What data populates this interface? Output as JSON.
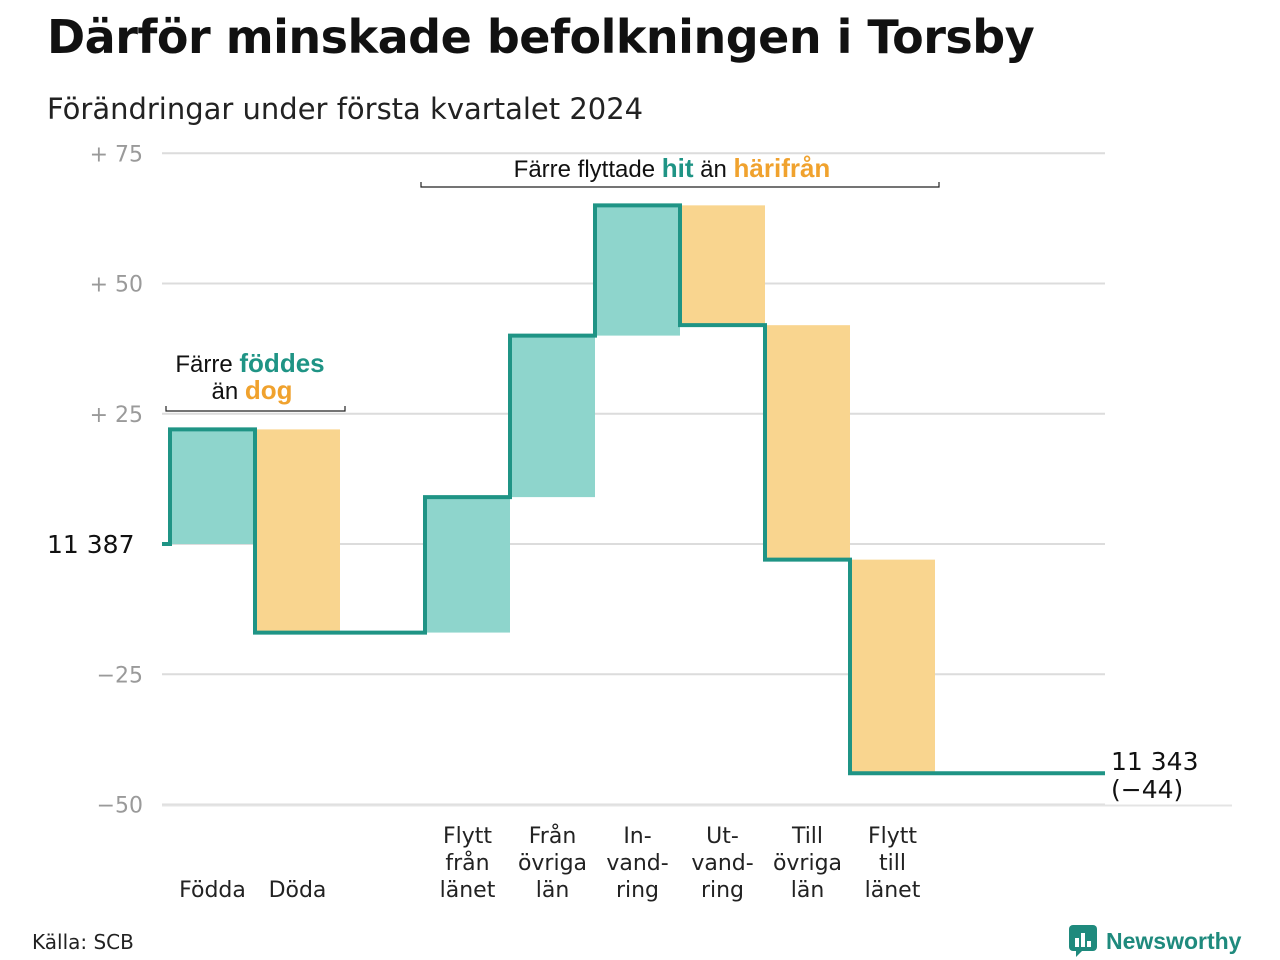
{
  "title": "Därför minskade befolkningen i Torsby",
  "subtitle": "Förändringar under första kvartalet 2024",
  "source": "Källa: SCB",
  "logo": {
    "text": "Newsworthy",
    "icon": "newsworthy-logo-icon"
  },
  "colors": {
    "teal_line": "#1f9485",
    "teal_fill": "#8ed5cc",
    "orange_fill": "#f9d58f",
    "orange_text": "#f0a22e",
    "grid": "#dcdcdc"
  },
  "chart_data": {
    "type": "waterfall",
    "start_label": "11  387",
    "end_label": "11 343",
    "end_change_label": "(−44)",
    "start_value": 11387,
    "end_value": 11343,
    "y_ticks": [
      {
        "value": 75,
        "label": "+  75"
      },
      {
        "value": 50,
        "label": "+  50"
      },
      {
        "value": 25,
        "label": "+  25"
      },
      {
        "value": -25,
        "label": "−25"
      },
      {
        "value": -50,
        "label": "−50"
      }
    ],
    "ylim": [
      -50,
      75
    ],
    "steps": [
      {
        "lines": [
          "Födda"
        ],
        "change": 22,
        "kind": "in"
      },
      {
        "lines": [
          "Döda"
        ],
        "change": -39,
        "kind": "out"
      },
      {
        "lines": [
          "Flytt",
          "från",
          "länet"
        ],
        "change": 26,
        "kind": "in"
      },
      {
        "lines": [
          "Från",
          "övriga",
          "län"
        ],
        "change": 31,
        "kind": "in"
      },
      {
        "lines": [
          "In-",
          "vand-",
          "ring"
        ],
        "change": 25,
        "kind": "in"
      },
      {
        "lines": [
          "Ut-",
          "vand-",
          "ring"
        ],
        "change": -23,
        "kind": "out"
      },
      {
        "lines": [
          "Till",
          "övriga",
          "län"
        ],
        "change": -45,
        "kind": "out"
      },
      {
        "lines": [
          "Flytt",
          "till",
          "länet"
        ],
        "change": -41,
        "kind": "out"
      }
    ],
    "annotations": {
      "births": {
        "line1_pre": "Färre ",
        "line1_hl": "föddes",
        "line2_pre": "än ",
        "line2_hl": "dog"
      },
      "moves": {
        "pre": "Färre flyttade ",
        "hl1": "hit",
        "mid": " än ",
        "hl2": "härifrån"
      }
    }
  }
}
